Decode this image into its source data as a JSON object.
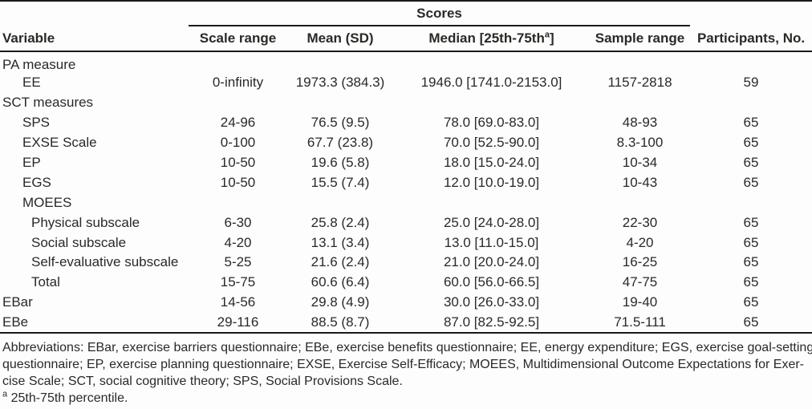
{
  "table": {
    "spanner_label": "Scores",
    "columns": {
      "variable": "Variable",
      "scale_range": "Scale range",
      "mean_sd": "Mean (SD)",
      "median_pre": "Median [25th-75th",
      "median_sup": "a",
      "median_post": "]",
      "sample_range": "Sample range",
      "participants": "Participants, No."
    },
    "rows": [
      {
        "variable": "PA measure",
        "indent": 0,
        "section": true,
        "scale_range": "",
        "mean_sd": "",
        "median": "",
        "sample_range": "",
        "participants": ""
      },
      {
        "variable": "EE",
        "indent": 1,
        "section": false,
        "scale_range": "0-infinity",
        "mean_sd": "1973.3 (384.3)",
        "median": "1946.0 [1741.0-2153.0]",
        "sample_range": "1157-2818",
        "participants": "59"
      },
      {
        "variable": "SCT measures",
        "indent": 0,
        "section": true,
        "scale_range": "",
        "mean_sd": "",
        "median": "",
        "sample_range": "",
        "participants": ""
      },
      {
        "variable": "SPS",
        "indent": 1,
        "section": false,
        "scale_range": "24-96",
        "mean_sd": "76.5 (9.5)",
        "median": "78.0 [69.0-83.0]",
        "sample_range": "48-93",
        "participants": "65"
      },
      {
        "variable": "EXSE Scale",
        "indent": 1,
        "section": false,
        "scale_range": "0-100",
        "mean_sd": "67.7 (23.8)",
        "median": "70.0 [52.5-90.0]",
        "sample_range": "8.3-100",
        "participants": "65"
      },
      {
        "variable": "EP",
        "indent": 1,
        "section": false,
        "scale_range": "10-50",
        "mean_sd": "19.6 (5.8)",
        "median": "18.0 [15.0-24.0]",
        "sample_range": "10-34",
        "participants": "65"
      },
      {
        "variable": "EGS",
        "indent": 1,
        "section": false,
        "scale_range": "10-50",
        "mean_sd": "15.5 (7.4)",
        "median": "12.0 [10.0-19.0]",
        "sample_range": "10-43",
        "participants": "65"
      },
      {
        "variable": "MOEES",
        "indent": 1,
        "section": true,
        "scale_range": "",
        "mean_sd": "",
        "median": "",
        "sample_range": "",
        "participants": ""
      },
      {
        "variable": "Physical subscale",
        "indent": 2,
        "section": false,
        "scale_range": "6-30",
        "mean_sd": "25.8 (2.4)",
        "median": "25.0 [24.0-28.0]",
        "sample_range": "22-30",
        "participants": "65"
      },
      {
        "variable": "Social subscale",
        "indent": 2,
        "section": false,
        "scale_range": "4-20",
        "mean_sd": "13.1 (3.4)",
        "median": "13.0 [11.0-15.0]",
        "sample_range": "4-20",
        "participants": "65"
      },
      {
        "variable": "Self-evaluative subscale",
        "indent": 2,
        "section": false,
        "scale_range": "5-25",
        "mean_sd": "21.6 (2.4)",
        "median": "21.0 [20.0-24.0]",
        "sample_range": "16-25",
        "participants": "65"
      },
      {
        "variable": "Total",
        "indent": 2,
        "section": false,
        "scale_range": "15-75",
        "mean_sd": "60.6 (6.4)",
        "median": "60.0 [56.0-66.5]",
        "sample_range": "47-75",
        "participants": "65"
      },
      {
        "variable": "EBar",
        "indent": 0,
        "section": false,
        "scale_range": "14-56",
        "mean_sd": "29.8 (4.9)",
        "median": "30.0 [26.0-33.0]",
        "sample_range": "19-40",
        "participants": "65"
      },
      {
        "variable": "EBe",
        "indent": 0,
        "section": false,
        "scale_range": "29-116",
        "mean_sd": "88.5 (8.7)",
        "median": "87.0 [82.5-92.5]",
        "sample_range": "71.5-111",
        "participants": "65"
      }
    ]
  },
  "footnotes": {
    "abbreviation_lines": [
      "Abbreviations: EBar, exercise barriers questionnaire; EBe, exercise benefits questionnaire; EE, energy expenditure; EGS, exercise goal-setting",
      "questionnaire; EP, exercise planning questionnaire; EXSE, Exercise Self-Efficacy; MOEES, Multidimensional Outcome Expectations for Exer-",
      "cise Scale; SCT, social cognitive theory; SPS, Social Provisions Scale."
    ],
    "percentile_sup": "a",
    "percentile_text": " 25th-75th percentile."
  },
  "colors": {
    "text": "#2b2926",
    "rule": "#1c1a19",
    "background": "#fdfdfd"
  }
}
